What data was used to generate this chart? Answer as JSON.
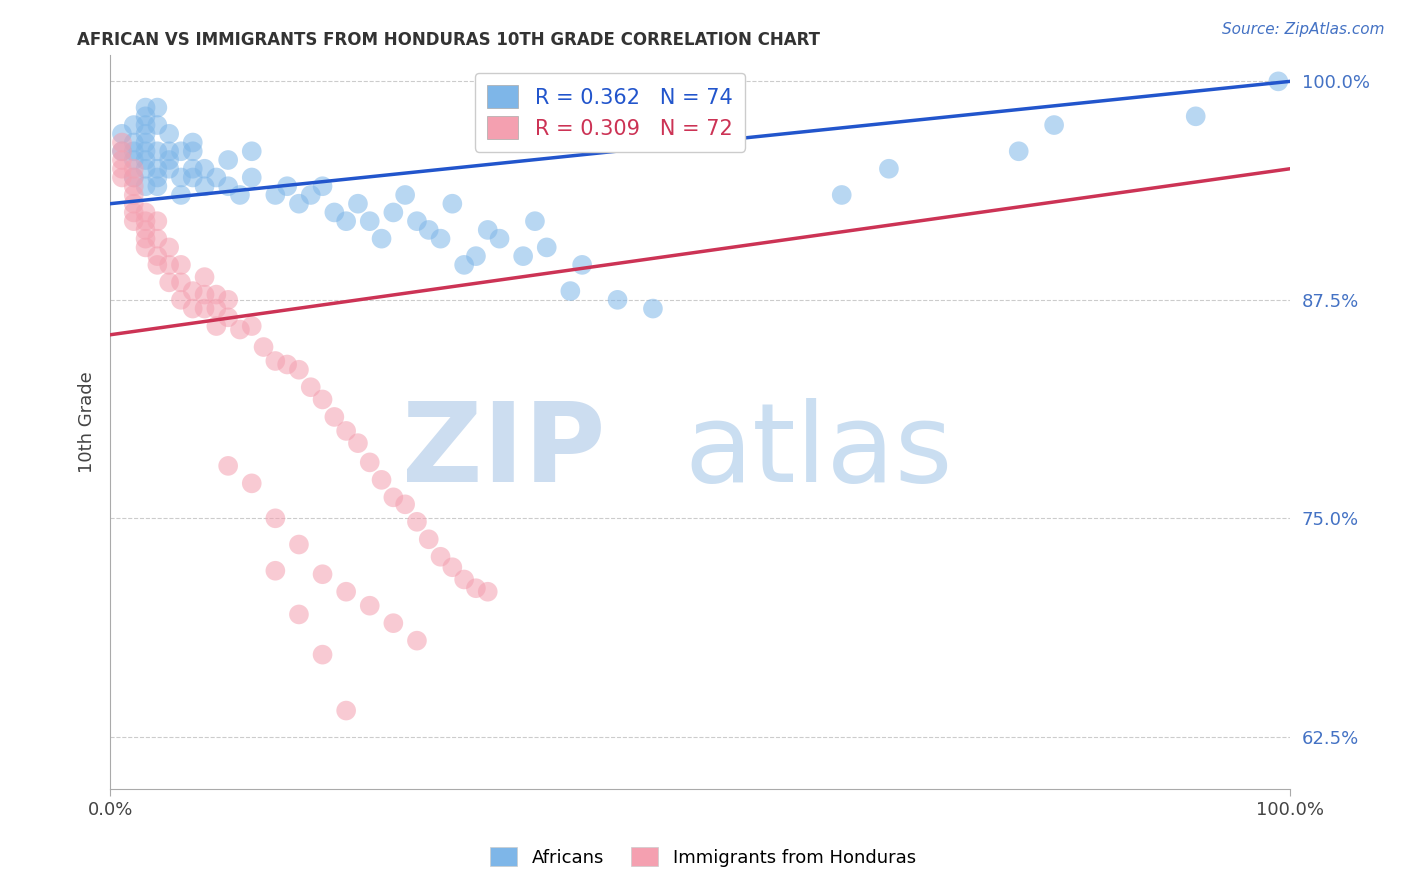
{
  "title": "AFRICAN VS IMMIGRANTS FROM HONDURAS 10TH GRADE CORRELATION CHART",
  "source_text": "Source: ZipAtlas.com",
  "ylabel": "10th Grade",
  "xlim": [
    0.0,
    1.0
  ],
  "ylim": [
    0.595,
    1.015
  ],
  "yticks": [
    0.625,
    0.75,
    0.875,
    1.0
  ],
  "ytick_labels": [
    "62.5%",
    "75.0%",
    "87.5%",
    "100.0%"
  ],
  "xticks": [
    0.0,
    1.0
  ],
  "xtick_labels": [
    "0.0%",
    "100.0%"
  ],
  "african_R": 0.362,
  "african_N": 74,
  "honduras_R": 0.309,
  "honduras_N": 72,
  "african_color": "#7eb6e8",
  "honduras_color": "#f4a0b0",
  "african_line_color": "#2255cc",
  "honduras_line_color": "#cc3355",
  "legend_african": "Africans",
  "legend_honduras": "Immigrants from Honduras",
  "african_line_x0": 0.0,
  "african_line_y0": 0.93,
  "african_line_x1": 1.0,
  "african_line_y1": 1.0,
  "honduras_line_x0": 0.0,
  "honduras_line_y0": 0.855,
  "honduras_line_x1": 1.0,
  "honduras_line_y1": 0.95,
  "african_x": [
    0.01,
    0.01,
    0.02,
    0.02,
    0.02,
    0.02,
    0.02,
    0.03,
    0.03,
    0.03,
    0.03,
    0.03,
    0.03,
    0.03,
    0.03,
    0.03,
    0.04,
    0.04,
    0.04,
    0.04,
    0.04,
    0.04,
    0.05,
    0.05,
    0.05,
    0.05,
    0.06,
    0.06,
    0.06,
    0.07,
    0.07,
    0.07,
    0.07,
    0.08,
    0.08,
    0.09,
    0.1,
    0.1,
    0.11,
    0.12,
    0.12,
    0.14,
    0.15,
    0.16,
    0.17,
    0.18,
    0.19,
    0.2,
    0.21,
    0.22,
    0.23,
    0.24,
    0.25,
    0.26,
    0.27,
    0.28,
    0.29,
    0.3,
    0.31,
    0.32,
    0.33,
    0.35,
    0.36,
    0.37,
    0.39,
    0.4,
    0.43,
    0.46,
    0.62,
    0.66,
    0.77,
    0.8,
    0.92,
    0.99
  ],
  "african_y": [
    0.96,
    0.97,
    0.945,
    0.955,
    0.96,
    0.965,
    0.975,
    0.94,
    0.95,
    0.955,
    0.96,
    0.965,
    0.97,
    0.975,
    0.98,
    0.985,
    0.94,
    0.945,
    0.95,
    0.96,
    0.975,
    0.985,
    0.95,
    0.955,
    0.96,
    0.97,
    0.935,
    0.945,
    0.96,
    0.945,
    0.95,
    0.96,
    0.965,
    0.94,
    0.95,
    0.945,
    0.94,
    0.955,
    0.935,
    0.945,
    0.96,
    0.935,
    0.94,
    0.93,
    0.935,
    0.94,
    0.925,
    0.92,
    0.93,
    0.92,
    0.91,
    0.925,
    0.935,
    0.92,
    0.915,
    0.91,
    0.93,
    0.895,
    0.9,
    0.915,
    0.91,
    0.9,
    0.92,
    0.905,
    0.88,
    0.895,
    0.875,
    0.87,
    0.935,
    0.95,
    0.96,
    0.975,
    0.98,
    1.0
  ],
  "honduras_x": [
    0.01,
    0.01,
    0.01,
    0.01,
    0.01,
    0.02,
    0.02,
    0.02,
    0.02,
    0.02,
    0.02,
    0.02,
    0.03,
    0.03,
    0.03,
    0.03,
    0.03,
    0.04,
    0.04,
    0.04,
    0.04,
    0.05,
    0.05,
    0.05,
    0.06,
    0.06,
    0.06,
    0.07,
    0.07,
    0.08,
    0.08,
    0.08,
    0.09,
    0.09,
    0.09,
    0.1,
    0.1,
    0.11,
    0.12,
    0.13,
    0.14,
    0.15,
    0.16,
    0.17,
    0.18,
    0.19,
    0.2,
    0.21,
    0.22,
    0.23,
    0.24,
    0.25,
    0.26,
    0.27,
    0.28,
    0.29,
    0.3,
    0.31,
    0.32,
    0.1,
    0.12,
    0.14,
    0.16,
    0.18,
    0.2,
    0.22,
    0.24,
    0.26,
    0.14,
    0.16,
    0.18,
    0.2
  ],
  "honduras_y": [
    0.945,
    0.95,
    0.955,
    0.96,
    0.965,
    0.92,
    0.925,
    0.93,
    0.935,
    0.94,
    0.945,
    0.95,
    0.905,
    0.91,
    0.915,
    0.92,
    0.925,
    0.895,
    0.9,
    0.91,
    0.92,
    0.885,
    0.895,
    0.905,
    0.875,
    0.885,
    0.895,
    0.87,
    0.88,
    0.87,
    0.878,
    0.888,
    0.86,
    0.87,
    0.878,
    0.865,
    0.875,
    0.858,
    0.86,
    0.848,
    0.84,
    0.838,
    0.835,
    0.825,
    0.818,
    0.808,
    0.8,
    0.793,
    0.782,
    0.772,
    0.762,
    0.758,
    0.748,
    0.738,
    0.728,
    0.722,
    0.715,
    0.71,
    0.708,
    0.78,
    0.77,
    0.75,
    0.735,
    0.718,
    0.708,
    0.7,
    0.69,
    0.68,
    0.72,
    0.695,
    0.672,
    0.64
  ]
}
